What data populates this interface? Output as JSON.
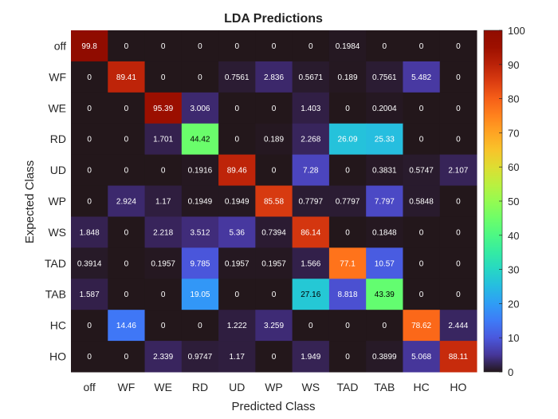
{
  "chart_data": {
    "type": "heatmap",
    "title": "LDA Predictions",
    "xlabel": "Predicted Class",
    "ylabel": "Expected Class",
    "x_categories": [
      "off",
      "WF",
      "WE",
      "RD",
      "UD",
      "WP",
      "WS",
      "TAD",
      "TAB",
      "HC",
      "HO"
    ],
    "y_categories": [
      "off",
      "WF",
      "WE",
      "RD",
      "UD",
      "WP",
      "WS",
      "TAD",
      "TAB",
      "HC",
      "HO"
    ],
    "cells": [
      [
        "99.8",
        "0",
        "0",
        "0",
        "0",
        "0",
        "0",
        "0.1984",
        "0",
        "0",
        "0"
      ],
      [
        "0",
        "89.41",
        "0",
        "0",
        "0.7561",
        "2.836",
        "0.5671",
        "0.189",
        "0.7561",
        "5.482",
        "0"
      ],
      [
        "0",
        "0",
        "95.39",
        "3.006",
        "0",
        "0",
        "1.403",
        "0",
        "0.2004",
        "0",
        "0"
      ],
      [
        "0",
        "0",
        "1.701",
        "44.42",
        "0",
        "0.189",
        "2.268",
        "26.09",
        "25.33",
        "0",
        "0"
      ],
      [
        "0",
        "0",
        "0",
        "0.1916",
        "89.46",
        "0",
        "7.28",
        "0",
        "0.3831",
        "0.5747",
        "2.107"
      ],
      [
        "0",
        "2.924",
        "1.17",
        "0.1949",
        "0.1949",
        "85.58",
        "0.7797",
        "0.7797",
        "7.797",
        "0.5848",
        "0"
      ],
      [
        "1.848",
        "0",
        "2.218",
        "3.512",
        "5.36",
        "0.7394",
        "86.14",
        "0",
        "0.1848",
        "0",
        "0"
      ],
      [
        "0.3914",
        "0",
        "0.1957",
        "9.785",
        "0.1957",
        "0.1957",
        "1.566",
        "77.1",
        "10.57",
        "0",
        "0"
      ],
      [
        "1.587",
        "0",
        "0",
        "19.05",
        "0",
        "0",
        "27.16",
        "8.818",
        "43.39",
        "0",
        "0"
      ],
      [
        "0",
        "14.46",
        "0",
        "0",
        "1.222",
        "3.259",
        "0",
        "0",
        "0",
        "78.62",
        "2.444"
      ],
      [
        "0",
        "0",
        "2.339",
        "0.9747",
        "1.17",
        "0",
        "1.949",
        "0",
        "0.3899",
        "5.068",
        "88.11"
      ]
    ],
    "colorbar": {
      "colormap": "turbo",
      "range": [
        0,
        100
      ],
      "ticks": [
        "0",
        "10",
        "20",
        "30",
        "40",
        "50",
        "60",
        "70",
        "80",
        "90",
        "100"
      ]
    },
    "grid": false,
    "legend": "none"
  }
}
